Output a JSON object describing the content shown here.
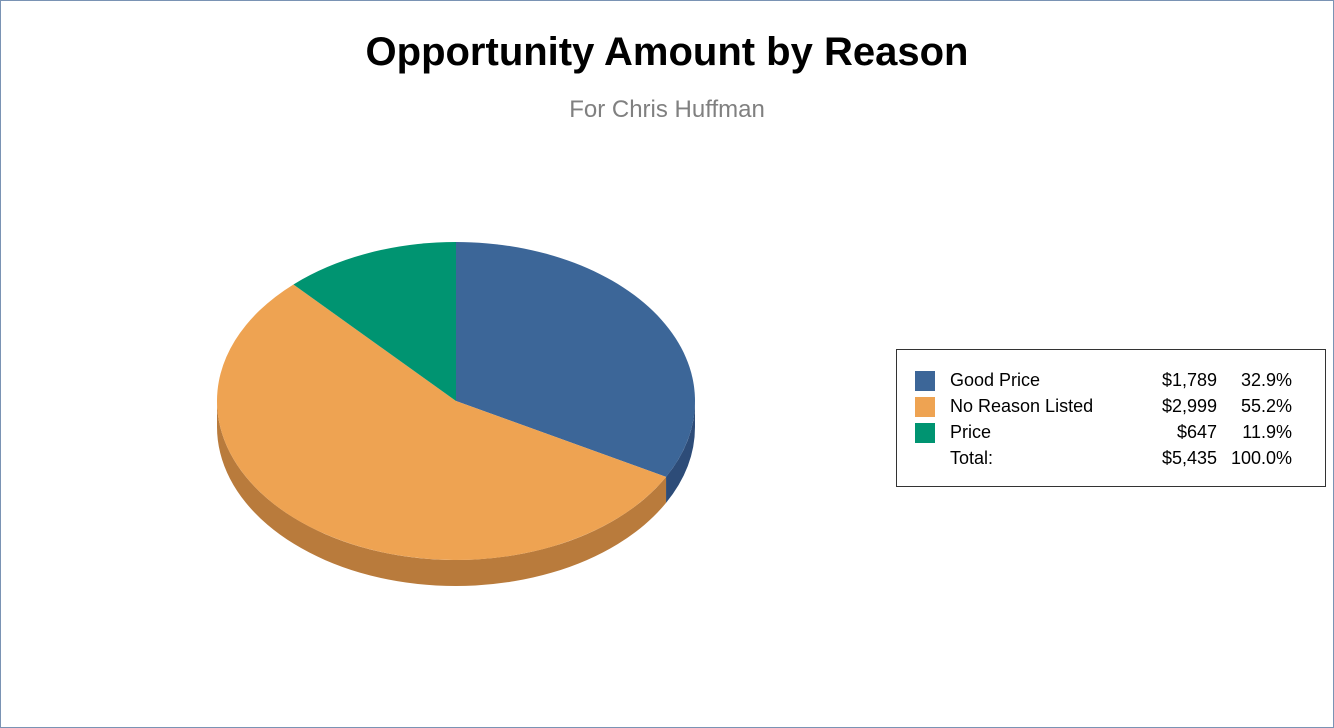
{
  "chart_data": {
    "type": "pie",
    "title": "Opportunity Amount by Reason",
    "subtitle": "For Chris Huffman",
    "categories": [
      "Good Price",
      "No Reason Listed",
      "Price"
    ],
    "values": [
      1789,
      2999,
      647
    ],
    "value_labels": [
      "$1,789",
      "$2,999",
      "$647"
    ],
    "percent_labels": [
      "32.9%",
      "55.2%",
      "11.9%"
    ],
    "colors": [
      "#3c6698",
      "#eea352",
      "#009471"
    ],
    "side_colors": [
      "#2d4c78",
      "#b97b3c",
      "#00704f"
    ],
    "legend": {
      "placement": "right",
      "total_label": "Total:",
      "total_value": "$5,435",
      "total_percent": "100.0%"
    }
  }
}
